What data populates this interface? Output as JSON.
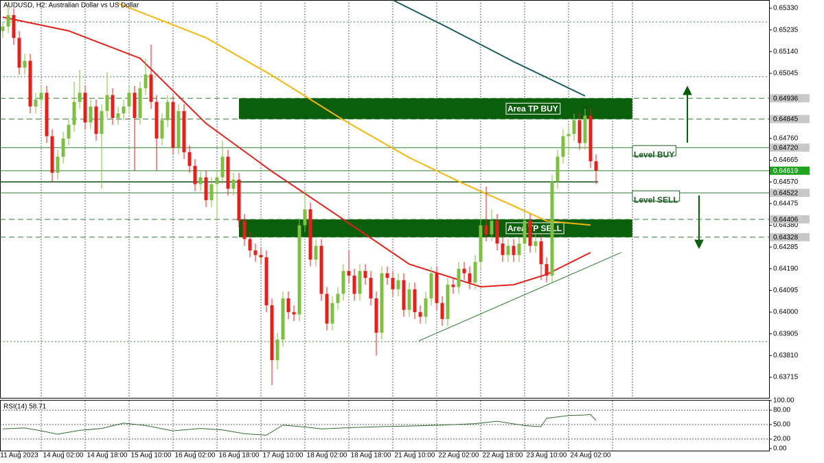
{
  "chart_data": {
    "type": "candlestick",
    "title": "AUDUSD, H2:  Australian Dollar vs US Dollar",
    "categories": [
      null,
      null,
      null,
      "11 Aug 2023",
      null,
      null,
      null,
      null,
      null,
      null,
      null,
      "14 Aug 02:00",
      null,
      null,
      null,
      null,
      null,
      null,
      null,
      "14 Aug 18:00",
      null,
      null,
      null,
      null,
      null,
      null,
      null,
      "15 Aug 10:00",
      null,
      null,
      null,
      null,
      null,
      null,
      null,
      "16 Aug 02:00",
      null,
      null,
      null,
      null,
      null,
      null,
      null,
      "16 Aug 18:00",
      null,
      null,
      null,
      null,
      null,
      null,
      null,
      "17 Aug 10:00",
      null,
      null,
      null,
      null,
      null,
      null,
      null,
      "18 Aug 02:00",
      null,
      null,
      null,
      null,
      null,
      null,
      null,
      "18 Aug 18:00",
      null,
      null,
      null,
      null,
      null,
      null,
      null,
      "21 Aug 10:00",
      null,
      null,
      null,
      null,
      null,
      null,
      null,
      "22 Aug 02:00",
      null,
      null,
      null,
      null,
      null,
      null,
      null,
      "22 Aug 18:00",
      null,
      null,
      null,
      null,
      null,
      null,
      null,
      "23 Aug 10:00",
      null,
      null,
      null,
      null,
      null,
      null,
      null,
      "24 Aug 02:00",
      null
    ],
    "xlim": [
      -0.5,
      139.5
    ],
    "ylim": [
      0.63625,
      0.65366
    ],
    "yticks": [
      {
        "value": 0.6533,
        "label": "0.65330"
      },
      {
        "value": 0.65235,
        "label": "0.65235"
      },
      {
        "value": 0.6514,
        "label": "0.65140"
      },
      {
        "value": 0.65045,
        "label": "0.65045"
      },
      {
        "value": 0.6476,
        "label": "0.64760"
      },
      {
        "value": 0.64665,
        "label": "0.64665"
      },
      {
        "value": 0.6457,
        "label": "0.64570"
      },
      {
        "value": 0.64475,
        "label": "0.64475"
      },
      {
        "value": 0.6438,
        "label": "0.64380"
      },
      {
        "value": 0.64285,
        "label": "0.64285"
      },
      {
        "value": 0.6419,
        "label": "0.64190"
      },
      {
        "value": 0.64095,
        "label": "0.64095"
      },
      {
        "value": 0.64,
        "label": "0.64000"
      },
      {
        "value": 0.63905,
        "label": "0.63905"
      },
      {
        "value": 0.6381,
        "label": "0.63810"
      },
      {
        "value": 0.63715,
        "label": "0.63715"
      }
    ],
    "up_color": "#7cbf42",
    "down_color": "#e3201b",
    "ohlc": [
      [
        0.6523,
        0.6527,
        0.652,
        0.6525
      ],
      [
        0.6525,
        0.6536,
        0.6522,
        0.653
      ],
      [
        0.653,
        0.6533,
        0.6517,
        0.652
      ],
      [
        0.652,
        0.6523,
        0.6504,
        0.6507
      ],
      [
        0.6507,
        0.6513,
        0.6504,
        0.651
      ],
      [
        0.651,
        0.6513,
        0.6487,
        0.649
      ],
      [
        0.649,
        0.6496,
        0.6487,
        0.6493
      ],
      [
        0.6493,
        0.6499,
        0.649,
        0.6496
      ],
      [
        0.6496,
        0.6499,
        0.6474,
        0.6477
      ],
      [
        0.6477,
        0.648,
        0.6457,
        0.6461
      ],
      [
        0.6461,
        0.6471,
        0.6458,
        0.6468
      ],
      [
        0.6468,
        0.6479,
        0.6465,
        0.6476
      ],
      [
        0.6476,
        0.6485,
        0.6473,
        0.6482
      ],
      [
        0.6482,
        0.6501,
        0.6479,
        0.6492
      ],
      [
        0.6492,
        0.6506,
        0.6489,
        0.6496
      ],
      [
        0.6496,
        0.6499,
        0.648,
        0.6483
      ],
      [
        0.6483,
        0.6493,
        0.648,
        0.649
      ],
      [
        0.649,
        0.6493,
        0.6475,
        0.6478
      ],
      [
        0.6478,
        0.6491,
        0.6454,
        0.6488
      ],
      [
        0.6488,
        0.6505,
        0.6485,
        0.6495
      ],
      [
        0.6495,
        0.6498,
        0.6482,
        0.6485
      ],
      [
        0.6485,
        0.649,
        0.6482,
        0.6487
      ],
      [
        0.6487,
        0.6493,
        0.6484,
        0.649
      ],
      [
        0.649,
        0.6499,
        0.6487,
        0.6496
      ],
      [
        0.6496,
        0.6499,
        0.6462,
        0.6485
      ],
      [
        0.6485,
        0.6501,
        0.6482,
        0.6498
      ],
      [
        0.6498,
        0.6511,
        0.6495,
        0.6504
      ],
      [
        0.6504,
        0.6517,
        0.6489,
        0.6492
      ],
      [
        0.6492,
        0.6495,
        0.6462,
        0.6476
      ],
      [
        0.6476,
        0.6487,
        0.6473,
        0.6484
      ],
      [
        0.6484,
        0.6495,
        0.6481,
        0.6492
      ],
      [
        0.6492,
        0.6495,
        0.6469,
        0.6472
      ],
      [
        0.6472,
        0.6491,
        0.6469,
        0.6488
      ],
      [
        0.6488,
        0.6491,
        0.6467,
        0.647
      ],
      [
        0.647,
        0.6473,
        0.6461,
        0.6464
      ],
      [
        0.6464,
        0.6467,
        0.6453,
        0.6456
      ],
      [
        0.6456,
        0.6462,
        0.6453,
        0.6459
      ],
      [
        0.6459,
        0.6462,
        0.6446,
        0.6449
      ],
      [
        0.6449,
        0.6459,
        0.6446,
        0.6456
      ],
      [
        0.6456,
        0.6462,
        0.644,
        0.6459
      ],
      [
        0.6459,
        0.6475,
        0.6456,
        0.6468
      ],
      [
        0.6468,
        0.6471,
        0.6451,
        0.6454
      ],
      [
        0.6454,
        0.6461,
        0.6451,
        0.6458
      ],
      [
        0.6458,
        0.6461,
        0.6437,
        0.644
      ],
      [
        0.644,
        0.6443,
        0.6429,
        0.6432
      ],
      [
        0.6432,
        0.6435,
        0.6424,
        0.6427
      ],
      [
        0.6427,
        0.643,
        0.6422,
        0.6425
      ],
      [
        0.6425,
        0.6428,
        0.6421,
        0.6424
      ],
      [
        0.6424,
        0.6427,
        0.64,
        0.6403
      ],
      [
        0.6403,
        0.6406,
        0.6368,
        0.6379
      ],
      [
        0.6379,
        0.6391,
        0.6375,
        0.6388
      ],
      [
        0.6388,
        0.6409,
        0.6385,
        0.6406
      ],
      [
        0.6406,
        0.6409,
        0.6397,
        0.64
      ],
      [
        0.64,
        0.6403,
        0.6396,
        0.6399
      ],
      [
        0.6399,
        0.6441,
        0.6396,
        0.6438
      ],
      [
        0.6438,
        0.6454,
        0.6435,
        0.6445
      ],
      [
        0.6445,
        0.6448,
        0.642,
        0.6423
      ],
      [
        0.6423,
        0.6432,
        0.642,
        0.6429
      ],
      [
        0.6429,
        0.6432,
        0.6405,
        0.6408
      ],
      [
        0.6408,
        0.6411,
        0.6392,
        0.6395
      ],
      [
        0.6395,
        0.6407,
        0.6392,
        0.6404
      ],
      [
        0.6404,
        0.6411,
        0.6401,
        0.6408
      ],
      [
        0.6408,
        0.6421,
        0.6405,
        0.6418
      ],
      [
        0.6418,
        0.6427,
        0.6413,
        0.6416
      ],
      [
        0.6416,
        0.6419,
        0.6405,
        0.6408
      ],
      [
        0.6408,
        0.6421,
        0.6405,
        0.6418
      ],
      [
        0.6418,
        0.6421,
        0.6412,
        0.6415
      ],
      [
        0.6415,
        0.6418,
        0.6403,
        0.6406
      ],
      [
        0.6406,
        0.6409,
        0.6381,
        0.6391
      ],
      [
        0.6391,
        0.642,
        0.6388,
        0.6417
      ],
      [
        0.6417,
        0.642,
        0.6412,
        0.6415
      ],
      [
        0.6415,
        0.6418,
        0.6407,
        0.641
      ],
      [
        0.641,
        0.6417,
        0.6407,
        0.6414
      ],
      [
        0.6414,
        0.6417,
        0.6398,
        0.6401
      ],
      [
        0.6401,
        0.6413,
        0.6398,
        0.641
      ],
      [
        0.641,
        0.6413,
        0.6397,
        0.64
      ],
      [
        0.64,
        0.6403,
        0.6395,
        0.6398
      ],
      [
        0.6398,
        0.6409,
        0.6395,
        0.6406
      ],
      [
        0.6406,
        0.642,
        0.6403,
        0.6417
      ],
      [
        0.6417,
        0.642,
        0.6401,
        0.6404
      ],
      [
        0.6404,
        0.6407,
        0.6394,
        0.6397
      ],
      [
        0.6397,
        0.6415,
        0.6394,
        0.6412
      ],
      [
        0.6412,
        0.6415,
        0.6408,
        0.6411
      ],
      [
        0.6411,
        0.6422,
        0.6408,
        0.6419
      ],
      [
        0.6419,
        0.6422,
        0.6414,
        0.6417
      ],
      [
        0.6417,
        0.642,
        0.641,
        0.6413
      ],
      [
        0.6413,
        0.6425,
        0.641,
        0.6422
      ],
      [
        0.6422,
        0.6442,
        0.6419,
        0.6438
      ],
      [
        0.6438,
        0.6455,
        0.6431,
        0.6434
      ],
      [
        0.6434,
        0.6445,
        0.6431,
        0.644
      ],
      [
        0.644,
        0.6443,
        0.6427,
        0.643
      ],
      [
        0.643,
        0.6433,
        0.6422,
        0.6425
      ],
      [
        0.6425,
        0.6432,
        0.6422,
        0.6429
      ],
      [
        0.6429,
        0.6432,
        0.6422,
        0.6425
      ],
      [
        0.6425,
        0.6433,
        0.6422,
        0.643
      ],
      [
        0.643,
        0.6445,
        0.6427,
        0.644
      ],
      [
        0.644,
        0.6443,
        0.6426,
        0.6429
      ],
      [
        0.6429,
        0.6434,
        0.6426,
        0.6431
      ],
      [
        0.6431,
        0.6434,
        0.6414,
        0.6421
      ],
      [
        0.6421,
        0.6424,
        0.6413,
        0.6416
      ],
      [
        0.6416,
        0.646,
        0.6413,
        0.6457
      ],
      [
        0.6457,
        0.6471,
        0.6454,
        0.6468
      ],
      [
        0.6468,
        0.648,
        0.6465,
        0.6477
      ],
      [
        0.6477,
        0.6482,
        0.6469,
        0.6478
      ],
      [
        0.6478,
        0.6487,
        0.6475,
        0.6484
      ],
      [
        0.6484,
        0.6487,
        0.6471,
        0.6474
      ],
      [
        0.6474,
        0.6489,
        0.6471,
        0.6486
      ],
      [
        0.6486,
        0.6489,
        0.6463,
        0.6466
      ],
      [
        0.6466,
        0.6469,
        0.6456,
        0.6462
      ]
    ],
    "series": [
      {
        "color": "#e3211c",
        "x": [
          0,
          12,
          25,
          37,
          49,
          62,
          74,
          87,
          93,
          99,
          107
        ],
        "values": [
          0.65291,
          0.65231,
          0.65111,
          0.64826,
          0.64616,
          0.64406,
          0.6421,
          0.64111,
          0.6412,
          0.64165,
          0.64261
        ]
      },
      {
        "color": "#f5b50a",
        "x": [
          21,
          37,
          49,
          62,
          74,
          84,
          93,
          99,
          107
        ],
        "values": [
          0.65351,
          0.65201,
          0.65036,
          0.64841,
          0.64676,
          0.64561,
          0.64465,
          0.64399,
          0.64381
        ]
      },
      {
        "color": "#1d5c5c",
        "x": [
          71,
          81,
          93,
          106
        ],
        "values": [
          0.65366,
          0.65246,
          0.65096,
          0.64946
        ]
      }
    ],
    "trendline": {
      "color": "#2e7d32",
      "x": [
        75.75,
        112.6
      ],
      "values": [
        0.63874,
        0.64261
      ]
    },
    "levels": [
      {
        "value": 0.6527,
        "style": "dotted"
      },
      {
        "value": 0.6503,
        "style": "dotted"
      },
      {
        "value": 0.63871,
        "style": "dotted"
      },
      {
        "value": 0.64936,
        "label": "0.64936",
        "style": "dashed",
        "color": "#c8c8c8"
      },
      {
        "value": 0.64845,
        "label": "0.64845",
        "style": "dashed",
        "color": "#c8c8c8"
      },
      {
        "value": 0.6472,
        "label": "0.64720",
        "style": "solid",
        "color": "#c8c8c8",
        "note": "Level BUY"
      },
      {
        "value": 0.64619,
        "label": "0.64619",
        "style": "solid",
        "color": "#22a322"
      },
      {
        "value": 0.6457,
        "style": "bid"
      },
      {
        "value": 0.64522,
        "label": "0.64522",
        "style": "solid",
        "color": "#c8c8c8",
        "note": "Level SELL"
      },
      {
        "value": 0.64406,
        "label": "0.64406",
        "style": "dashed",
        "color": "#c8c8c8"
      },
      {
        "value": 0.64328,
        "label": "0.64328",
        "style": "dashed",
        "color": "#c8c8c8"
      }
    ],
    "zones": [
      {
        "label": "Area TP BUY",
        "from": 0.64845,
        "to": 0.64936,
        "x": [
          43,
          114.6
        ],
        "color": "#0b5e0b"
      },
      {
        "label": "Area TP SELL",
        "from": 0.64328,
        "to": 0.64406,
        "x": [
          43,
          114.6
        ],
        "color": "#0b5e0b"
      }
    ],
    "rsi": {
      "title": "RSI(14) 58.71",
      "color": "#2e6b2e",
      "ylim": [
        0,
        100
      ],
      "yticks": [
        {
          "value": 100,
          "label": "100.00"
        },
        {
          "value": 80,
          "label": "80.00"
        },
        {
          "value": 50,
          "label": "50.00"
        },
        {
          "value": 20,
          "label": "20.00"
        },
        {
          "value": 0,
          "label": "0.00"
        }
      ],
      "x": [
        0,
        4,
        7,
        10,
        14,
        18,
        22,
        26,
        31,
        36,
        40,
        44,
        48,
        51,
        55,
        58,
        64,
        70,
        74,
        80,
        86,
        90,
        95,
        97,
        98,
        99,
        103,
        106,
        107,
        108
      ],
      "values": [
        41,
        43,
        37,
        30,
        38,
        42,
        53,
        48,
        37,
        42,
        39,
        31,
        28,
        49,
        45,
        41,
        44,
        46,
        47,
        49,
        52,
        57,
        48,
        46,
        46,
        63,
        69,
        70,
        71,
        58.71
      ]
    }
  }
}
